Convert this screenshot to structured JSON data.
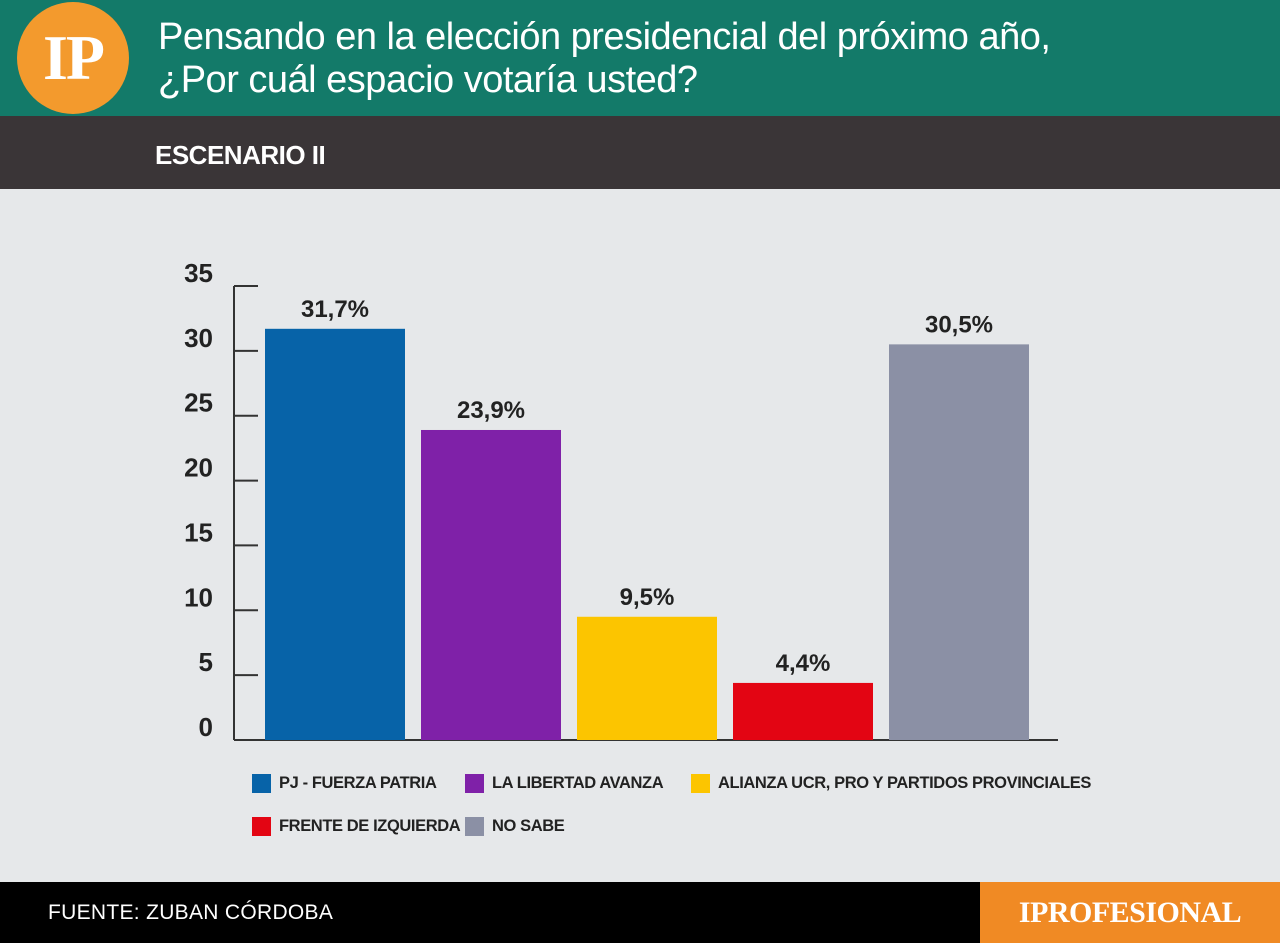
{
  "header": {
    "logo": "IP",
    "title_line1": "Pensando en la elección presidencial del próximo año,",
    "title_line2": "¿Por cuál espacio votaría usted?",
    "accent_color": "#137a69",
    "logo_color": "#f39a2d"
  },
  "scenario": "ESCENARIO II",
  "chart_data": {
    "type": "bar",
    "categories": [
      "PJ - FUERZA PATRIA",
      "LA LIBERTAD AVANZA",
      "ALIANZA UCR, PRO Y PARTIDOS PROVINCIALES",
      "FRENTE DE IZQUIERDA",
      "NO SABE"
    ],
    "values": [
      31.7,
      23.9,
      9.5,
      4.4,
      30.5
    ],
    "value_labels": [
      "31,7%",
      "23,9%",
      "9,5%",
      "4,4%",
      "30,5%"
    ],
    "colors": [
      "#0763a8",
      "#7f21a8",
      "#fcc500",
      "#e30513",
      "#8b90a5"
    ],
    "ylim": [
      0,
      35
    ],
    "yticks": [
      0,
      5,
      10,
      15,
      20,
      25,
      30,
      35
    ],
    "legend_position": "bottom",
    "grid": false
  },
  "footer": {
    "source": "FUENTE: ZUBAN CÓRDOBA",
    "brand": "IPROFESIONAL",
    "brand_color": "#f08a24"
  }
}
